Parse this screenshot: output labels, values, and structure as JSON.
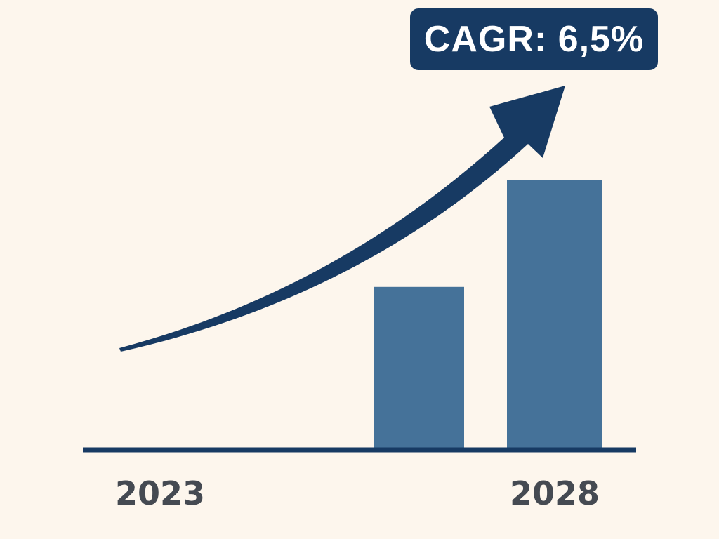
{
  "chart_data": {
    "type": "bar",
    "title": "",
    "xlabel": "",
    "ylabel": "",
    "categories": [
      "",
      ""
    ],
    "values": [
      0.6,
      1.0
    ],
    "value_scale": "relative (taller bar = 1.0)",
    "x_tick_labels": [
      "2023",
      "2028"
    ],
    "annotation": "CAGR: 6,5%",
    "trend_arrow": "rising curve toward the top-right",
    "grid": false,
    "legend": "none",
    "colors": {
      "bar": "#457299",
      "arrow": "#173a63",
      "baseline": "#173a63",
      "badge_bg": "#173a63",
      "badge_text": "#ffffff",
      "tick_text": "#454a52",
      "background": "#fdf6ed"
    }
  }
}
